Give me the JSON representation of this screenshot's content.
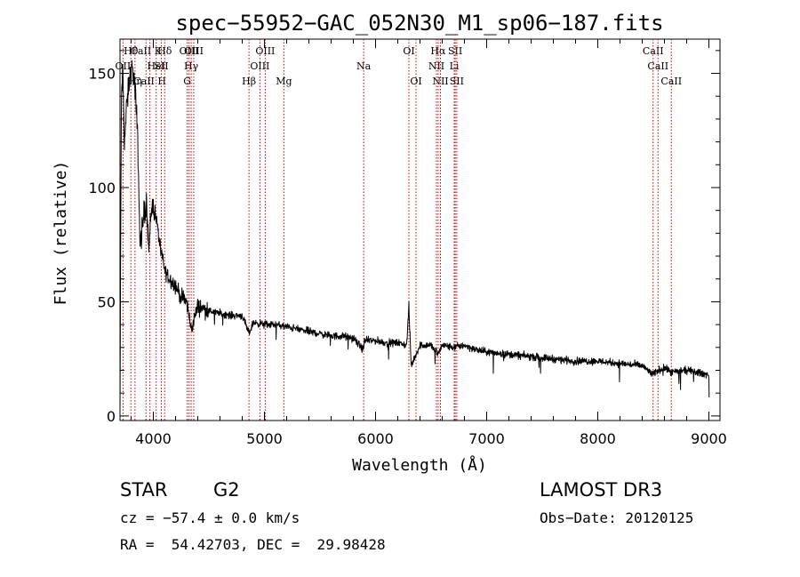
{
  "chart_data": {
    "type": "line",
    "title": "spec−55952−GAC_052N30_M1_sp06−187.fits",
    "xlabel": "Wavelength (Å)",
    "ylabel": "Flux (relative)",
    "xlim": [
      3700,
      9100
    ],
    "ylim": [
      -2,
      165
    ],
    "xticks": [
      4000,
      5000,
      6000,
      7000,
      8000,
      9000
    ],
    "yticks": [
      0,
      50,
      100,
      150
    ],
    "series": [
      {
        "name": "flux",
        "x": [
          3700,
          3712,
          3725,
          3740,
          3760,
          3780,
          3800,
          3820,
          3840,
          3860,
          3880,
          3900,
          3920,
          3940,
          3960,
          3980,
          4000,
          4030,
          4060,
          4100,
          4150,
          4200,
          4250,
          4300,
          4340,
          4400,
          4500,
          4600,
          4700,
          4800,
          4861,
          4900,
          5000,
          5100,
          5200,
          5300,
          5400,
          5500,
          5600,
          5700,
          5800,
          5890,
          5900,
          6000,
          6100,
          6200,
          6280,
          6300,
          6320,
          6400,
          6500,
          6563,
          6600,
          6700,
          6800,
          6900,
          7000,
          7200,
          7400,
          7600,
          7800,
          8000,
          8200,
          8400,
          8498,
          8542,
          8600,
          8662,
          8800,
          9000,
          9004
        ],
        "y": [
          1,
          140,
          150,
          120,
          135,
          145,
          152,
          150,
          140,
          120,
          75,
          82,
          90,
          94,
          72,
          90,
          93,
          85,
          75,
          64,
          60,
          57,
          52,
          50,
          38,
          48,
          46,
          45,
          44,
          44,
          36,
          41,
          40,
          40,
          39,
          38,
          37,
          36,
          35,
          35,
          34,
          29,
          33,
          33,
          32,
          32,
          31,
          48,
          22,
          31,
          31,
          27,
          31,
          30,
          31,
          29,
          28,
          27,
          26,
          25,
          24,
          24,
          23,
          22,
          18,
          20,
          21,
          19,
          20,
          18,
          2
        ]
      }
    ],
    "lines": {
      "labels": [
        "OII",
        "Hθ",
        "Hη",
        "CaII K",
        "CaII H",
        "HeI",
        "SII",
        "Hδ",
        "Hγ",
        "G",
        "OIII",
        "OIII",
        "Hβ",
        "OIII",
        "OIII",
        "Mg",
        "Na",
        "OI",
        "OI",
        "NII",
        "Hα",
        "NII",
        "Li",
        "SII",
        "SII",
        "CaII",
        "CaII",
        "CaII"
      ],
      "wavelengths": [
        3727,
        3798,
        3835,
        3934,
        3969,
        4026,
        4072,
        4102,
        4341,
        4305,
        4321,
        4364,
        4861,
        4959,
        5007,
        5175,
        5893,
        6300,
        6364,
        6548,
        6563,
        6584,
        6708,
        6717,
        6731,
        8498,
        8542,
        8662
      ],
      "rows": [
        2,
        1,
        3,
        1,
        3,
        2,
        2,
        1,
        2,
        3,
        1,
        1,
        3,
        2,
        1,
        3,
        2,
        1,
        3,
        2,
        1,
        3,
        2,
        1,
        3,
        1,
        2,
        3
      ]
    }
  },
  "info": {
    "object_class": "STAR",
    "subclass": "G2",
    "survey": "LAMOST DR3",
    "redshift": "cz = −57.4 ± 0.0 km/s",
    "obs_date": "Obs−Date: 20120125",
    "coords": "RA =  54.42703, DEC =  29.98428"
  }
}
